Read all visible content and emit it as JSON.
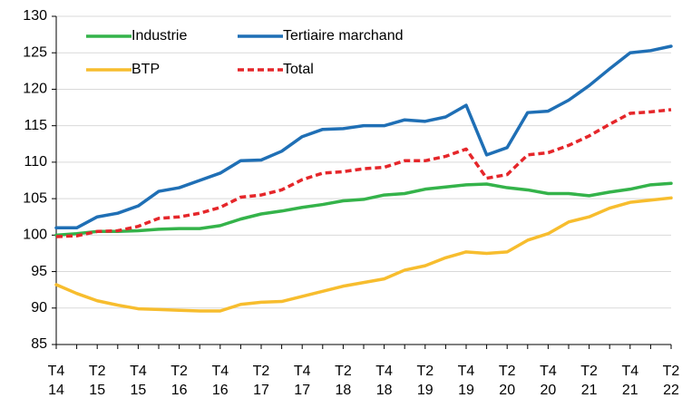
{
  "chart_data": {
    "type": "line",
    "categories": [
      [
        "T4",
        "14"
      ],
      null,
      [
        "T2",
        "15"
      ],
      null,
      [
        "T4",
        "15"
      ],
      null,
      [
        "T2",
        "16"
      ],
      null,
      [
        "T4",
        "16"
      ],
      null,
      [
        "T2",
        "17"
      ],
      null,
      [
        "T4",
        "17"
      ],
      null,
      [
        "T2",
        "18"
      ],
      null,
      [
        "T4",
        "18"
      ],
      null,
      [
        "T2",
        "19"
      ],
      null,
      [
        "T4",
        "19"
      ],
      null,
      [
        "T2",
        "20"
      ],
      null,
      [
        "T4",
        "20"
      ],
      null,
      [
        "T2",
        "21"
      ],
      null,
      [
        "T4",
        "21"
      ],
      null,
      [
        "T2",
        "22"
      ]
    ],
    "series": [
      {
        "name": "Industrie",
        "color": "#34b34a",
        "style": "solid",
        "values": [
          100,
          100.2,
          100.5,
          100.5,
          100.6,
          100.8,
          100.9,
          100.9,
          101.3,
          102.2,
          102.9,
          103.3,
          103.8,
          104.2,
          104.7,
          104.9,
          105.5,
          105.7,
          106.3,
          106.6,
          106.9,
          107,
          106.5,
          106.2,
          105.7,
          105.7,
          105.4,
          105.9,
          106.3,
          106.9,
          107.1
        ]
      },
      {
        "name": "Tertiaire marchand",
        "color": "#1f6fb5",
        "style": "solid",
        "values": [
          101,
          101,
          102.5,
          103,
          104,
          106,
          106.5,
          107.5,
          108.5,
          110.2,
          110.3,
          111.5,
          113.5,
          114.5,
          114.6,
          115,
          115,
          115.8,
          115.6,
          116.2,
          117.8,
          111,
          112,
          116.8,
          117,
          118.5,
          120.5,
          122.8,
          125,
          125.3,
          125.9
        ]
      },
      {
        "name": "BTP",
        "color": "#f7bd2e",
        "style": "solid",
        "values": [
          93.2,
          92,
          91,
          90.4,
          89.9,
          89.8,
          89.7,
          89.6,
          89.6,
          90.5,
          90.8,
          90.9,
          91.6,
          92.3,
          93,
          93.5,
          94,
          95.2,
          95.8,
          96.9,
          97.7,
          97.5,
          97.7,
          99.3,
          100.2,
          101.8,
          102.5,
          103.7,
          104.5,
          104.8,
          105.1
        ]
      },
      {
        "name": "Total",
        "color": "#e5262a",
        "style": "dashed",
        "values": [
          99.8,
          99.9,
          100.5,
          100.6,
          101.2,
          102.3,
          102.5,
          103,
          103.8,
          105.2,
          105.5,
          106.2,
          107.6,
          108.5,
          108.7,
          109.1,
          109.3,
          110.2,
          110.2,
          110.8,
          111.8,
          107.8,
          108.3,
          111,
          111.3,
          112.3,
          113.6,
          115.2,
          116.7,
          116.9,
          117.2
        ]
      }
    ],
    "ylim": [
      85,
      130
    ],
    "yticks": [
      85,
      90,
      95,
      100,
      105,
      110,
      115,
      120,
      125,
      130
    ],
    "grid": true
  }
}
